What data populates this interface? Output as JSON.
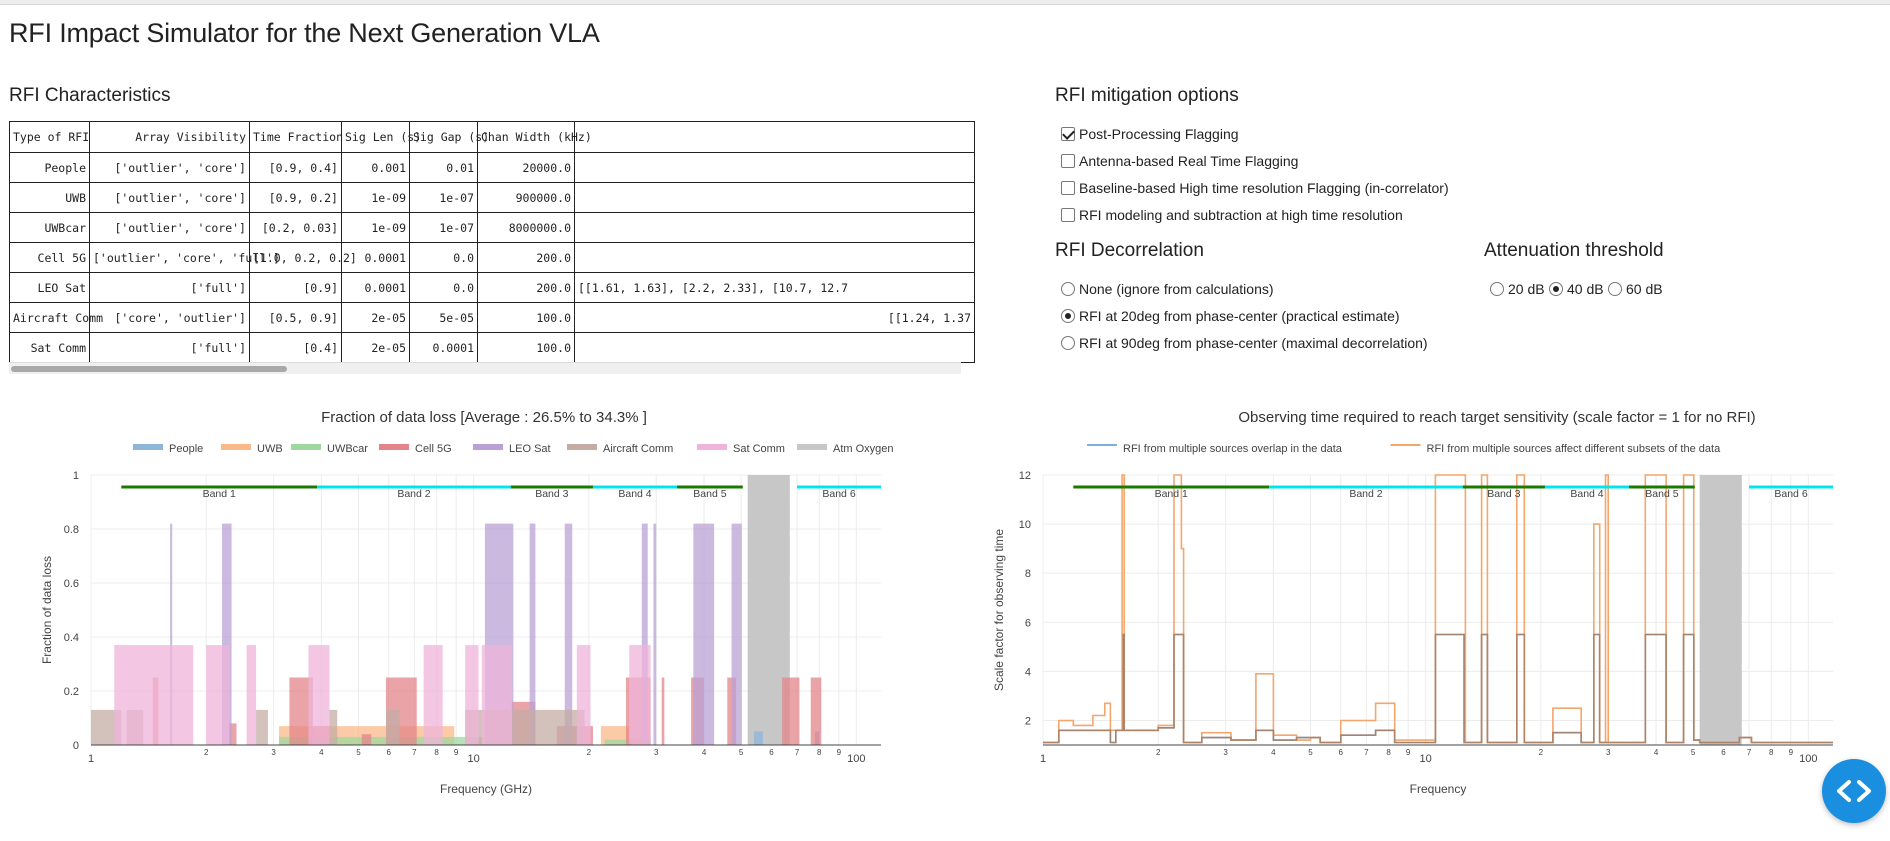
{
  "app": {
    "title": "RFI Impact Simulator for the Next Generation VLA"
  },
  "rfi_characteristics": {
    "heading": "RFI Characteristics",
    "columns": [
      "Type of RFI",
      "Array Visibility",
      "Time Fraction",
      "Sig Len (s)",
      "Sig Gap (s)",
      "Chan Width (kHz)",
      ""
    ],
    "rows": [
      [
        "People",
        "['outlier', 'core']",
        "[0.9, 0.4]",
        "0.001",
        "0.01",
        "20000.0",
        ""
      ],
      [
        "UWB",
        "['outlier', 'core']",
        "[0.9, 0.2]",
        "1e-09",
        "1e-07",
        "900000.0",
        ""
      ],
      [
        "UWBcar",
        "['outlier', 'core']",
        "[0.2, 0.03]",
        "1e-09",
        "1e-07",
        "8000000.0",
        ""
      ],
      [
        "Cell 5G",
        "['outlier', 'core', 'full']",
        "[1.0, 0.2, 0.2]",
        "0.0001",
        "0.0",
        "200.0",
        ""
      ],
      [
        "LEO Sat",
        "['full']",
        "[0.9]",
        "0.0001",
        "0.0",
        "200.0",
        "[[1.61, 1.63], [2.2, 2.33], [10.7, 12.7"
      ],
      [
        "Aircraft Comm",
        "['core', 'outlier']",
        "[0.5, 0.9]",
        "2e-05",
        "5e-05",
        "100.0",
        "[[1.24, 1.37"
      ],
      [
        "Sat Comm",
        "['full']",
        "[0.4]",
        "2e-05",
        "0.0001",
        "100.0",
        ""
      ]
    ]
  },
  "mitigation": {
    "heading": "RFI mitigation options",
    "options": [
      {
        "label": "Post-Processing Flagging",
        "checked": true
      },
      {
        "label": "Antenna-based Real Time Flagging",
        "checked": false
      },
      {
        "label": "Baseline-based High time resolution Flagging (in-correlator)",
        "checked": false
      },
      {
        "label": "RFI modeling and subtraction at high time resolution",
        "checked": false
      }
    ]
  },
  "decorrelation": {
    "heading": "RFI Decorrelation",
    "options": [
      {
        "label": "None (ignore from calculations)",
        "selected": false
      },
      {
        "label": "RFI at 20deg from phase-center (practical estimate)",
        "selected": true
      },
      {
        "label": "RFI at 90deg from phase-center (maximal decorrelation)",
        "selected": false
      }
    ]
  },
  "attenuation": {
    "heading": "Attenuation threshold",
    "options": [
      {
        "label": "20 dB",
        "selected": false
      },
      {
        "label": "40 dB",
        "selected": true
      },
      {
        "label": "60 dB",
        "selected": false
      }
    ]
  },
  "fab": {
    "icon": "code-icon",
    "color": "#1a8fe0"
  },
  "chart_data": [
    {
      "type": "bar",
      "title": "Fraction of data loss   [Average :  26.5% to 34.3% ]",
      "xlabel": "Frequency (GHz)",
      "ylabel": "Fraction of data loss",
      "x_scale": "log",
      "xlim": [
        1,
        116
      ],
      "ylim": [
        0,
        1
      ],
      "x_ticks": [
        "1",
        "2",
        "3",
        "4",
        "5",
        "6",
        "7",
        "8",
        "9",
        "10",
        "2",
        "3",
        "4",
        "5",
        "6",
        "7",
        "8",
        "9",
        "100"
      ],
      "y_ticks": [
        "0",
        "0.2",
        "0.4",
        "0.6",
        "0.8",
        "1"
      ],
      "legend_position": "top",
      "series": [
        {
          "name": "People",
          "color": "#8db6d9",
          "bars": [
            [
              54,
              57,
              0.05
            ],
            [
              78,
              80,
              0.05
            ]
          ]
        },
        {
          "name": "UWB",
          "color": "#f9b98a",
          "bars": [
            [
              3.1,
              4.9,
              0.07
            ],
            [
              4.9,
              8.9,
              0.07
            ],
            [
              21.5,
              25.5,
              0.07
            ]
          ]
        },
        {
          "name": "UWBcar",
          "color": "#9fd89f",
          "bars": [
            [
              3.1,
              10.6,
              0.03
            ],
            [
              22,
              29,
              0.02
            ]
          ]
        },
        {
          "name": "Cell 5G",
          "color": "#e3848a",
          "bars": [
            [
              1.45,
              1.5,
              0.25
            ],
            [
              2.3,
              2.4,
              0.08
            ],
            [
              3.3,
              3.8,
              0.25
            ],
            [
              3.7,
              4.2,
              0.07
            ],
            [
              5.1,
              5.4,
              0.04
            ],
            [
              5.9,
              7.1,
              0.25
            ],
            [
              12.5,
              14.5,
              0.16
            ],
            [
              16.5,
              20.5,
              0.07
            ],
            [
              25,
              29,
              0.25
            ],
            [
              31,
              31.5,
              0.25
            ],
            [
              37,
              40,
              0.25
            ],
            [
              46,
              48.5,
              0.25
            ],
            [
              64,
              71,
              0.25
            ],
            [
              76,
              81,
              0.25
            ]
          ]
        },
        {
          "name": "LEO Sat",
          "color": "#b9a1d6",
          "bars": [
            [
              1.61,
              1.63,
              0.82
            ],
            [
              2.2,
              2.33,
              0.82
            ],
            [
              10.7,
              12.7,
              0.82
            ],
            [
              14,
              14.5,
              0.82
            ],
            [
              17.3,
              18.1,
              0.82
            ],
            [
              27.5,
              28.5,
              0.82
            ],
            [
              29.5,
              30,
              0.82
            ],
            [
              37.5,
              42.5,
              0.82
            ],
            [
              47.2,
              50.2,
              0.82
            ]
          ]
        },
        {
          "name": "Aircraft Comm",
          "color": "#c4aca5",
          "bars": [
            [
              1.0,
              1.2,
              0.13
            ],
            [
              1.24,
              1.37,
              0.13
            ],
            [
              2.7,
              2.9,
              0.13
            ],
            [
              4.2,
              4.4,
              0.13
            ],
            [
              5.9,
              6.4,
              0.13
            ],
            [
              9.5,
              19.5,
              0.13
            ]
          ]
        },
        {
          "name": "Sat Comm",
          "color": "#efb4d9",
          "bars": [
            [
              1.15,
              1.85,
              0.37
            ],
            [
              2.0,
              2.3,
              0.37
            ],
            [
              2.55,
              2.7,
              0.37
            ],
            [
              3.7,
              4.2,
              0.37
            ],
            [
              7.4,
              8.3,
              0.37
            ],
            [
              9.5,
              10.3,
              0.37
            ],
            [
              10.5,
              12.6,
              0.37
            ],
            [
              18.6,
              20.2,
              0.37
            ],
            [
              25.5,
              29,
              0.37
            ]
          ]
        }
      ],
      "shaded_region": {
        "name": "Atm Oxygen",
        "range": [
          52,
          67
        ],
        "color": "#c7c7c7"
      },
      "bands": [
        {
          "name": "Band 1",
          "range": [
            1.2,
            3.9
          ],
          "color": "#1a7a00"
        },
        {
          "name": "Band 2",
          "range": [
            3.9,
            12.5
          ],
          "color": "#00e5ee"
        },
        {
          "name": "Band 3",
          "range": [
            12.5,
            20.5
          ],
          "color": "#1a7a00"
        },
        {
          "name": "Band 4",
          "range": [
            20.5,
            34
          ],
          "color": "#00e5ee"
        },
        {
          "name": "Band 5",
          "range": [
            34,
            50.5
          ],
          "color": "#1a7a00"
        },
        {
          "name": "Band 6",
          "range": [
            70,
            116
          ],
          "color": "#00e5ee"
        }
      ]
    },
    {
      "type": "line",
      "title": "Observing time required to reach target sensitivity (scale factor = 1 for no RFI)",
      "xlabel": "Frequency",
      "ylabel": "Scale factor for observing time",
      "x_scale": "log",
      "xlim": [
        1,
        116
      ],
      "ylim": [
        1,
        12
      ],
      "x_ticks": [
        "1",
        "2",
        "3",
        "4",
        "5",
        "6",
        "7",
        "8",
        "9",
        "10",
        "2",
        "3",
        "4",
        "5",
        "6",
        "7",
        "8",
        "9",
        "100"
      ],
      "y_ticks": [
        "2",
        "4",
        "6",
        "8",
        "10",
        "12"
      ],
      "legend_position": "top",
      "series": [
        {
          "name": "RFI from multiple sources overlap in the data",
          "color": "#7fb0d8",
          "x": [
            1.0,
            1.1,
            1.1,
            1.5,
            1.5,
            1.55,
            1.55,
            1.62,
            1.62,
            1.63,
            1.63,
            2.0,
            2.0,
            2.2,
            2.2,
            2.33,
            2.33,
            2.6,
            2.6,
            3.1,
            3.1,
            3.6,
            3.6,
            4.0,
            4.0,
            4.6,
            4.6,
            5.3,
            5.3,
            6.0,
            6.0,
            7.4,
            7.4,
            8.3,
            8.3,
            9.4,
            9.4,
            10.6,
            10.6,
            12.6,
            12.6,
            14.0,
            14.0,
            14.5,
            14.5,
            17.3,
            17.3,
            18.1,
            18.1,
            21.5,
            21.5,
            25.5,
            25.5,
            27.5,
            27.5,
            28.5,
            28.5,
            30,
            30,
            37.5,
            37.5,
            42.5,
            42.5,
            47.2,
            47.2,
            50.2,
            50.2,
            52,
            52,
            66,
            66,
            71,
            71,
            116
          ],
          "y": [
            1.1,
            1.1,
            1.6,
            1.6,
            1.1,
            1.1,
            1.6,
            1.6,
            5.5,
            5.5,
            1.6,
            1.6,
            1.7,
            1.7,
            5.5,
            5.5,
            1.1,
            1.1,
            1.3,
            1.3,
            1.2,
            1.2,
            1.6,
            1.6,
            1.2,
            1.2,
            1.3,
            1.3,
            1.1,
            1.1,
            1.4,
            1.4,
            1.6,
            1.6,
            1.1,
            1.1,
            1.1,
            1.1,
            5.5,
            5.5,
            1.1,
            1.1,
            5.5,
            5.5,
            1.1,
            1.1,
            5.5,
            5.5,
            1.1,
            1.1,
            1.5,
            1.5,
            1.1,
            1.1,
            5.5,
            5.5,
            1.1,
            1.1,
            1.1,
            1.1,
            5.5,
            5.5,
            1.1,
            1.1,
            5.5,
            5.5,
            1.2,
            1.2,
            1.1,
            1.1,
            1.3,
            1.3,
            1.1,
            1.1
          ]
        },
        {
          "name": "RFI from multiple sources affect different subsets of the data",
          "color": "#f4a66b",
          "x": [
            1.0,
            1.1,
            1.1,
            1.2,
            1.2,
            1.35,
            1.35,
            1.45,
            1.45,
            1.5,
            1.5,
            1.61,
            1.61,
            1.63,
            1.63,
            2.0,
            2.0,
            2.2,
            2.2,
            2.3,
            2.3,
            2.33,
            2.33,
            2.6,
            2.6,
            3.1,
            3.1,
            3.6,
            3.6,
            4.0,
            4.0,
            4.6,
            4.6,
            5.0,
            5.0,
            5.3,
            5.3,
            6.0,
            6.0,
            7.4,
            7.4,
            8.3,
            8.3,
            9.4,
            9.4,
            10.6,
            10.6,
            10.7,
            10.7,
            12.7,
            12.7,
            14.0,
            14.0,
            14.5,
            14.5,
            17.3,
            17.3,
            18.1,
            18.1,
            21.5,
            21.5,
            25.5,
            25.5,
            27.5,
            27.5,
            28.5,
            28.5,
            29.5,
            29.5,
            30,
            30,
            37.5,
            37.5,
            42.5,
            42.5,
            47.2,
            47.2,
            50.2,
            50.2,
            52,
            52,
            66,
            66,
            71,
            71,
            116
          ],
          "y": [
            1.1,
            1.1,
            2.0,
            2.0,
            1.8,
            1.8,
            2.2,
            2.2,
            2.7,
            2.7,
            1.6,
            1.6,
            12,
            12,
            1.6,
            1.6,
            1.8,
            1.8,
            12,
            12,
            9.0,
            9.0,
            1.1,
            1.1,
            1.5,
            1.5,
            1.2,
            1.2,
            3.9,
            3.9,
            1.4,
            1.4,
            1.2,
            1.2,
            1.3,
            1.3,
            1.1,
            1.1,
            2.0,
            2.0,
            2.7,
            2.7,
            1.2,
            1.2,
            1.2,
            1.2,
            12,
            12,
            12,
            12,
            1.1,
            1.1,
            12,
            12,
            1.1,
            1.1,
            12,
            12,
            1.1,
            1.1,
            2.5,
            2.5,
            1.1,
            1.1,
            10,
            10,
            1.1,
            1.1,
            12,
            12,
            1.1,
            1.1,
            12,
            12,
            1.1,
            1.1,
            12,
            12,
            1.2,
            1.2,
            1.1,
            1.1,
            1.3,
            1.3,
            1.1,
            1.1
          ]
        }
      ],
      "shaded_region": {
        "name": "Atm Oxygen",
        "range": [
          52,
          67
        ],
        "color": "#c7c7c7"
      },
      "bands": [
        {
          "name": "Band 1",
          "range": [
            1.2,
            3.9
          ],
          "color": "#1a7a00"
        },
        {
          "name": "Band 2",
          "range": [
            3.9,
            12.5
          ],
          "color": "#00e5ee"
        },
        {
          "name": "Band 3",
          "range": [
            12.5,
            20.5
          ],
          "color": "#1a7a00"
        },
        {
          "name": "Band 4",
          "range": [
            20.5,
            34
          ],
          "color": "#00e5ee"
        },
        {
          "name": "Band 5",
          "range": [
            34,
            50.5
          ],
          "color": "#1a7a00"
        },
        {
          "name": "Band 6",
          "range": [
            70,
            116
          ],
          "color": "#00e5ee"
        }
      ]
    }
  ]
}
